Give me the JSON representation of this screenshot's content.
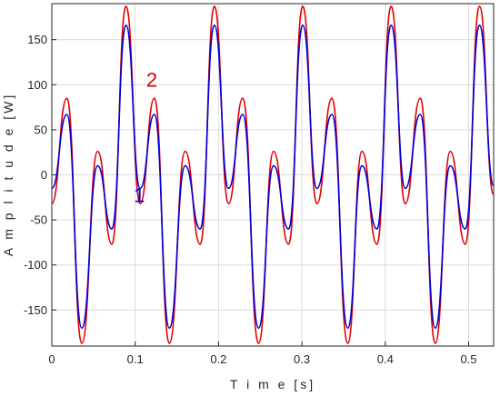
{
  "chart_data": {
    "type": "line",
    "xlabel": "T i m e [s]",
    "ylabel": "A m p l i t u d e [W]",
    "xlim": [
      0,
      0.53
    ],
    "ylim": [
      -190,
      190
    ],
    "xticks": [
      0,
      0.1,
      0.2,
      0.3,
      0.4,
      0.5
    ],
    "xtick_labels": [
      "0",
      "0.1",
      "0.2",
      "0.3",
      "0.4",
      "0.5"
    ],
    "yticks": [
      -150,
      -100,
      -50,
      0,
      50,
      100,
      150
    ],
    "ytick_labels": [
      "-150",
      "-100",
      "-50",
      "0",
      "50",
      "100",
      "150"
    ],
    "grid": true,
    "annotations": [
      {
        "text": "2",
        "x": 0.12,
        "y": 98,
        "color": "#e00000"
      },
      {
        "text": "1",
        "x": 0.105,
        "y": -30,
        "color": "#0000d8"
      }
    ],
    "series": [
      {
        "color": "#e00000",
        "x": [
          0,
          0.018,
          0.036,
          0.055,
          0.072,
          0.089,
          0.106,
          0.123,
          0.141,
          0.16,
          0.178,
          0.195,
          0.212,
          0.229,
          0.248,
          0.266,
          0.284,
          0.301,
          0.318,
          0.336,
          0.355,
          0.372,
          0.39,
          0.407,
          0.424,
          0.442,
          0.46,
          0.478,
          0.496,
          0.513,
          0.53
        ],
        "values": [
          -32,
          85,
          -187,
          26,
          -77,
          187,
          -32,
          85,
          -187,
          26,
          -77,
          187,
          -32,
          85,
          -187,
          26,
          -77,
          187,
          -32,
          85,
          -187,
          26,
          -77,
          187,
          -32,
          85,
          -187,
          26,
          -77,
          187,
          -22
        ]
      },
      {
        "color": "#0000d8",
        "x": [
          0,
          0.018,
          0.036,
          0.055,
          0.072,
          0.089,
          0.106,
          0.123,
          0.141,
          0.16,
          0.178,
          0.195,
          0.212,
          0.229,
          0.248,
          0.266,
          0.284,
          0.301,
          0.318,
          0.336,
          0.355,
          0.372,
          0.39,
          0.407,
          0.424,
          0.442,
          0.46,
          0.478,
          0.496,
          0.513,
          0.53
        ],
        "values": [
          -15,
          67,
          -170,
          10,
          -60,
          166,
          -15,
          67,
          -170,
          10,
          -60,
          166,
          -15,
          67,
          -170,
          10,
          -60,
          166,
          -15,
          67,
          -170,
          10,
          -60,
          166,
          -15,
          67,
          -170,
          10,
          -60,
          166,
          -12
        ]
      }
    ]
  }
}
